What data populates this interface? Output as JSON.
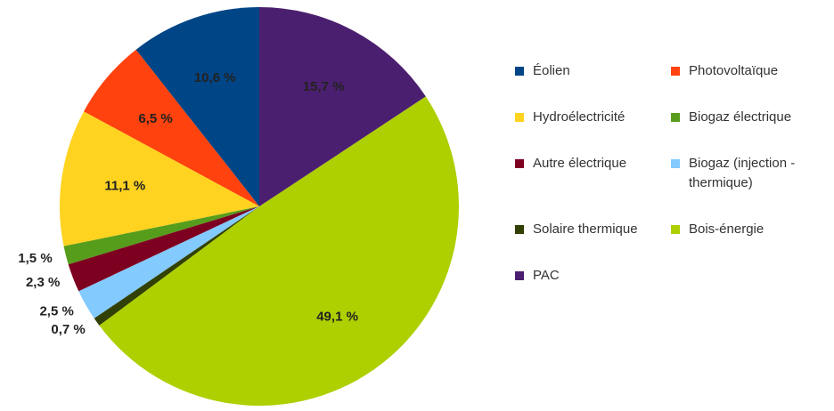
{
  "chart_data": {
    "type": "pie",
    "categories": [
      "Éolien",
      "Photovoltaïque",
      "Hydroélectricité",
      "Biogaz électrique",
      "Autre électrique",
      "Biogaz (injection - thermique)",
      "Solaire thermique",
      "Bois-énergie",
      "PAC"
    ],
    "values": [
      10.6,
      6.5,
      11.1,
      1.5,
      2.3,
      2.5,
      0.7,
      49.1,
      15.7
    ],
    "value_labels": [
      "10,6 %",
      "6,5 %",
      "11,1 %",
      "1,5 %",
      "2,3 %",
      "2,5 %",
      "0,7 %",
      "49,1 %",
      "15,7 %"
    ],
    "colors": [
      "#004586",
      "#ff420e",
      "#ffd320",
      "#579d1c",
      "#7e0021",
      "#83caff",
      "#314004",
      "#aecf00",
      "#4b1f6f"
    ],
    "legend": "right"
  }
}
